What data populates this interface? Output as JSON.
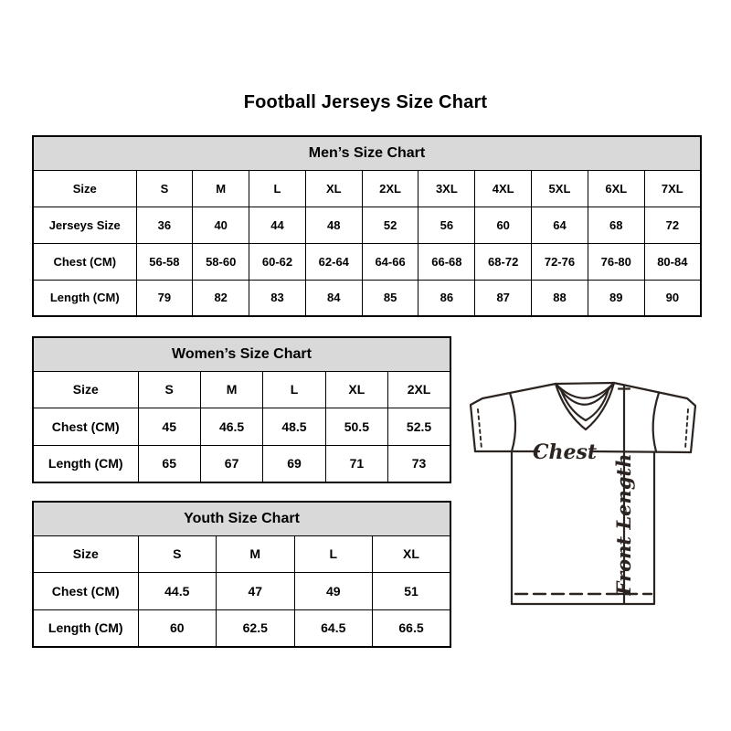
{
  "page": {
    "title": "Football Jerseys Size Chart"
  },
  "chart_data": [
    {
      "type": "table",
      "title": "Men’s Size Chart",
      "rows": [
        [
          "Size",
          "S",
          "M",
          "L",
          "XL",
          "2XL",
          "3XL",
          "4XL",
          "5XL",
          "6XL",
          "7XL"
        ],
        [
          "Jerseys Size",
          "36",
          "40",
          "44",
          "48",
          "52",
          "56",
          "60",
          "64",
          "68",
          "72"
        ],
        [
          "Chest (CM)",
          "56-58",
          "58-60",
          "60-62",
          "62-64",
          "64-66",
          "66-68",
          "68-72",
          "72-76",
          "76-80",
          "80-84"
        ],
        [
          "Length (CM)",
          "79",
          "82",
          "83",
          "84",
          "85",
          "86",
          "87",
          "88",
          "89",
          "90"
        ]
      ]
    },
    {
      "type": "table",
      "title": "Women’s Size Chart",
      "rows": [
        [
          "Size",
          "S",
          "M",
          "L",
          "XL",
          "2XL"
        ],
        [
          "Chest (CM)",
          "45",
          "46.5",
          "48.5",
          "50.5",
          "52.5"
        ],
        [
          "Length (CM)",
          "65",
          "67",
          "69",
          "71",
          "73"
        ]
      ]
    },
    {
      "type": "table",
      "title": "Youth Size Chart",
      "rows": [
        [
          "Size",
          "S",
          "M",
          "L",
          "XL"
        ],
        [
          "Chest (CM)",
          "44.5",
          "47",
          "49",
          "51"
        ],
        [
          "Length (CM)",
          "60",
          "62.5",
          "64.5",
          "66.5"
        ]
      ]
    }
  ],
  "diagram": {
    "chest_label": "Chest",
    "front_length_label": "Front Length"
  },
  "colors": {
    "table_header_bg": "#d9d9d9",
    "table_border": "#000000",
    "text": "#000000",
    "diagram_line": "#2b2420"
  }
}
